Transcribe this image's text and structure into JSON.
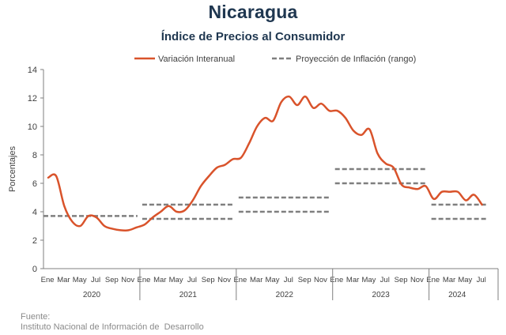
{
  "header": {
    "title": "Nicaragua",
    "subtitle": "Índice de Precios al Consumidor"
  },
  "source": {
    "label": "Fuente:",
    "text": "Instituto Nacional de Información de  Desarrollo"
  },
  "colors": {
    "series": "#d9532b",
    "projection": "#7f7f7f",
    "axis": "#7f7f7f",
    "title": "#1f3750"
  },
  "chart_data": {
    "type": "line",
    "title": "Índice de Precios al Consumidor",
    "ylabel": "Porcentajes",
    "ylim": [
      0,
      14
    ],
    "yticks": [
      0,
      2,
      4,
      6,
      8,
      10,
      12,
      14
    ],
    "grid": false,
    "legend_position": "top",
    "month_tick_labels": [
      "Ene",
      "Mar",
      "May",
      "Jul",
      "Sep",
      "Nov"
    ],
    "month_tick_labels_2024": [
      "Ene",
      "Mar",
      "May",
      "Jul"
    ],
    "years": [
      "2020",
      "2021",
      "2022",
      "2023",
      "2024"
    ],
    "series": [
      {
        "name": "Variación Interanual",
        "style": "solid",
        "x_start": "2020-01",
        "values": [
          6.4,
          6.5,
          4.4,
          3.3,
          3.0,
          3.7,
          3.6,
          3.0,
          2.8,
          2.7,
          2.7,
          2.9,
          3.1,
          3.6,
          4.0,
          4.4,
          4.0,
          4.1,
          4.8,
          5.8,
          6.5,
          7.1,
          7.3,
          7.7,
          7.8,
          8.8,
          10.0,
          10.6,
          10.4,
          11.7,
          12.1,
          11.5,
          12.1,
          11.3,
          11.6,
          11.1,
          11.1,
          10.6,
          9.7,
          9.4,
          9.8,
          8.1,
          7.4,
          7.1,
          5.9,
          5.7,
          5.6,
          5.8,
          4.9,
          5.4,
          5.4,
          5.4,
          4.8,
          5.2,
          4.5
        ]
      }
    ],
    "projection_ranges": {
      "name": "Proyección de Inflación (rango)",
      "style": "dashed",
      "ranges": [
        {
          "period": "2020",
          "low": 3.7,
          "high": 3.7
        },
        {
          "period": "2021",
          "low": 3.5,
          "high": 4.5
        },
        {
          "period": "2022",
          "low": 4.0,
          "high": 5.0
        },
        {
          "period": "2023",
          "low": 6.0,
          "high": 7.0
        },
        {
          "period": "2024",
          "low": 3.5,
          "high": 4.5
        }
      ]
    }
  }
}
